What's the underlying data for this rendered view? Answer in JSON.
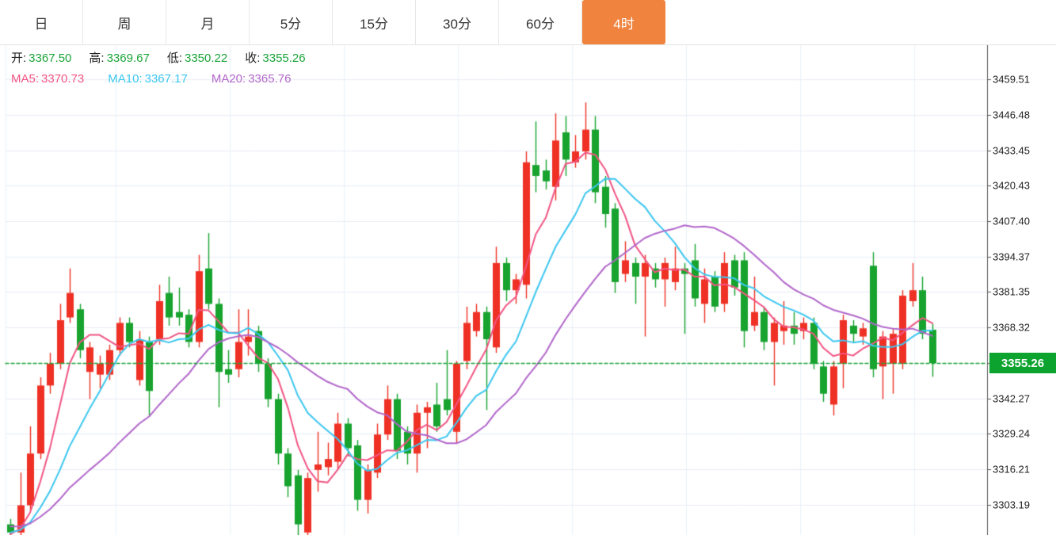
{
  "tabs": {
    "items": [
      "日",
      "周",
      "月",
      "5分",
      "15分",
      "30分",
      "60分",
      "4时"
    ],
    "active_index": 7,
    "active_bg": "#f0833e"
  },
  "legend": {
    "ohlc": [
      {
        "key": "open",
        "label": "开:",
        "value": "3367.50"
      },
      {
        "key": "high",
        "label": "高:",
        "value": "3369.67"
      },
      {
        "key": "low",
        "label": "低:",
        "value": "3350.22"
      },
      {
        "key": "close",
        "label": "收:",
        "value": "3355.26"
      }
    ],
    "ohlc_value_color": "#1ca53a",
    "ma": [
      {
        "key": "ma5",
        "label": "MA5:",
        "value": "3370.73",
        "color": "#f25584"
      },
      {
        "key": "ma10",
        "label": "MA10:",
        "value": "3367.17",
        "color": "#3cc7f0"
      },
      {
        "key": "ma20",
        "label": "MA20:",
        "value": "3365.76",
        "color": "#b266cb"
      }
    ]
  },
  "chart_data": {
    "type": "candlestick",
    "interval": "4时",
    "legend_values": {
      "open": 3367.5,
      "high": 3369.67,
      "low": 3350.22,
      "close": 3355.26,
      "MA5": 3370.73,
      "MA10": 3367.17,
      "MA20": 3365.76
    },
    "last_price": 3355.26,
    "y_axis": {
      "ticks": [
        3459.51,
        3446.48,
        3433.45,
        3420.43,
        3407.4,
        3394.37,
        3381.35,
        3368.32,
        3342.27,
        3329.24,
        3316.21,
        3303.19
      ],
      "tick_step": 13.03,
      "visible_range_approx": [
        3292,
        3472
      ],
      "grid": true
    },
    "colors": {
      "up": "#ef3125",
      "down": "#17a32e",
      "ma5": "#f25584",
      "ma10": "#3cc7f0",
      "ma20": "#b266cb",
      "current_price_line": "#1ca53a",
      "badge_bg": "#0ca32f",
      "grid_h": "#e8eef5",
      "grid_v": "#e9f2fa",
      "axis_line": "#555555"
    },
    "ma_periods": [
      5,
      10,
      20
    ],
    "pre_window_closes_estimate": [
      3305,
      3303,
      3301,
      3299,
      3298,
      3297,
      3296,
      3296,
      3295,
      3295,
      3295,
      3294,
      3294,
      3294,
      3293,
      3293,
      3293,
      3292,
      3292,
      3292
    ],
    "candles_ohlc": [
      [
        3296,
        3298,
        3291,
        3293
      ],
      [
        3293,
        3315,
        3291,
        3303
      ],
      [
        3303,
        3332,
        3301,
        3322
      ],
      [
        3322,
        3350,
        3320,
        3347
      ],
      [
        3347,
        3359,
        3344,
        3355
      ],
      [
        3355,
        3377,
        3353,
        3371
      ],
      [
        3372,
        3390,
        3370,
        3381
      ],
      [
        3375,
        3377,
        3357,
        3360
      ],
      [
        3352,
        3363,
        3342,
        3361
      ],
      [
        3351,
        3358,
        3346,
        3355
      ],
      [
        3351,
        3362,
        3349,
        3360
      ],
      [
        3360,
        3372,
        3358,
        3370
      ],
      [
        3370,
        3372,
        3361,
        3363
      ],
      [
        3349,
        3367,
        3347,
        3364
      ],
      [
        3363,
        3365,
        3336,
        3345
      ],
      [
        3364,
        3384,
        3362,
        3378
      ],
      [
        3381,
        3387,
        3369,
        3372
      ],
      [
        3374,
        3383,
        3369,
        3372
      ],
      [
        3373,
        3375,
        3361,
        3363
      ],
      [
        3363,
        3395,
        3361,
        3389
      ],
      [
        3390,
        3403,
        3375,
        3377
      ],
      [
        3377,
        3379,
        3339,
        3352
      ],
      [
        3353,
        3360,
        3348,
        3351
      ],
      [
        3353,
        3375,
        3350,
        3363
      ],
      [
        3363,
        3375,
        3358,
        3365
      ],
      [
        3367,
        3369,
        3352,
        3355
      ],
      [
        3355,
        3357,
        3339,
        3342
      ],
      [
        3342,
        3344,
        3318,
        3322
      ],
      [
        3322,
        3324,
        3306,
        3310
      ],
      [
        3314,
        3316,
        3291,
        3296
      ],
      [
        3293,
        3315,
        3290,
        3313
      ],
      [
        3316,
        3330,
        3308,
        3318
      ],
      [
        3317,
        3326,
        3314,
        3320
      ],
      [
        3319,
        3337,
        3316,
        3333
      ],
      [
        3333,
        3335,
        3321,
        3324
      ],
      [
        3325,
        3327,
        3301,
        3305
      ],
      [
        3305,
        3318,
        3300,
        3316
      ],
      [
        3315,
        3333,
        3313,
        3329
      ],
      [
        3329,
        3347,
        3327,
        3342
      ],
      [
        3342,
        3344,
        3320,
        3323
      ],
      [
        3330,
        3332,
        3318,
        3322
      ],
      [
        3322,
        3340,
        3315,
        3337
      ],
      [
        3337,
        3341,
        3324,
        3339
      ],
      [
        3340,
        3348,
        3330,
        3332
      ],
      [
        3342,
        3360,
        3336,
        3338
      ],
      [
        3330,
        3356,
        3326,
        3355
      ],
      [
        3356,
        3376,
        3353,
        3370
      ],
      [
        3367,
        3377,
        3365,
        3374
      ],
      [
        3374,
        3376,
        3338,
        3364
      ],
      [
        3361,
        3398,
        3359,
        3392
      ],
      [
        3392,
        3394,
        3378,
        3382
      ],
      [
        3382,
        3388,
        3377,
        3386
      ],
      [
        3384,
        3433,
        3379,
        3429
      ],
      [
        3428,
        3444,
        3418,
        3424
      ],
      [
        3426,
        3430,
        3419,
        3422
      ],
      [
        3420,
        3447,
        3415,
        3437
      ],
      [
        3440,
        3446,
        3424,
        3430
      ],
      [
        3429,
        3439,
        3427,
        3433
      ],
      [
        3433,
        3451,
        3430,
        3441
      ],
      [
        3441,
        3446,
        3414,
        3418
      ],
      [
        3420,
        3424,
        3405,
        3410
      ],
      [
        3412,
        3414,
        3381,
        3385
      ],
      [
        3388,
        3400,
        3385,
        3393
      ],
      [
        3392,
        3394,
        3377,
        3387
      ],
      [
        3387,
        3395,
        3365,
        3392
      ],
      [
        3390,
        3392,
        3383,
        3386
      ],
      [
        3386,
        3394,
        3376,
        3392
      ],
      [
        3385,
        3398,
        3382,
        3390
      ],
      [
        3390,
        3392,
        3366,
        3388
      ],
      [
        3393,
        3399,
        3376,
        3379
      ],
      [
        3377,
        3390,
        3370,
        3386
      ],
      [
        3387,
        3389,
        3374,
        3376
      ],
      [
        3377,
        3396,
        3374,
        3392
      ],
      [
        3393,
        3395,
        3380,
        3383
      ],
      [
        3393,
        3396,
        3361,
        3367
      ],
      [
        3369,
        3387,
        3367,
        3374
      ],
      [
        3374,
        3376,
        3360,
        3363
      ],
      [
        3363,
        3372,
        3347,
        3370
      ],
      [
        3367,
        3378,
        3362,
        3369
      ],
      [
        3369,
        3374,
        3362,
        3366
      ],
      [
        3367,
        3372,
        3364,
        3370
      ],
      [
        3370,
        3372,
        3353,
        3355
      ],
      [
        3354,
        3356,
        3341,
        3344
      ],
      [
        3340,
        3356,
        3336,
        3354
      ],
      [
        3355,
        3373,
        3346,
        3371
      ],
      [
        3369,
        3371,
        3363,
        3366
      ],
      [
        3365,
        3370,
        3362,
        3368
      ],
      [
        3391,
        3396,
        3350,
        3353
      ],
      [
        3354,
        3367,
        3342,
        3365
      ],
      [
        3355,
        3368,
        3344,
        3366
      ],
      [
        3355,
        3382,
        3353,
        3380
      ],
      [
        3378,
        3392,
        3376,
        3382
      ],
      [
        3382,
        3387,
        3364,
        3366
      ],
      [
        3367.5,
        3369.67,
        3350.22,
        3355.26
      ]
    ]
  }
}
